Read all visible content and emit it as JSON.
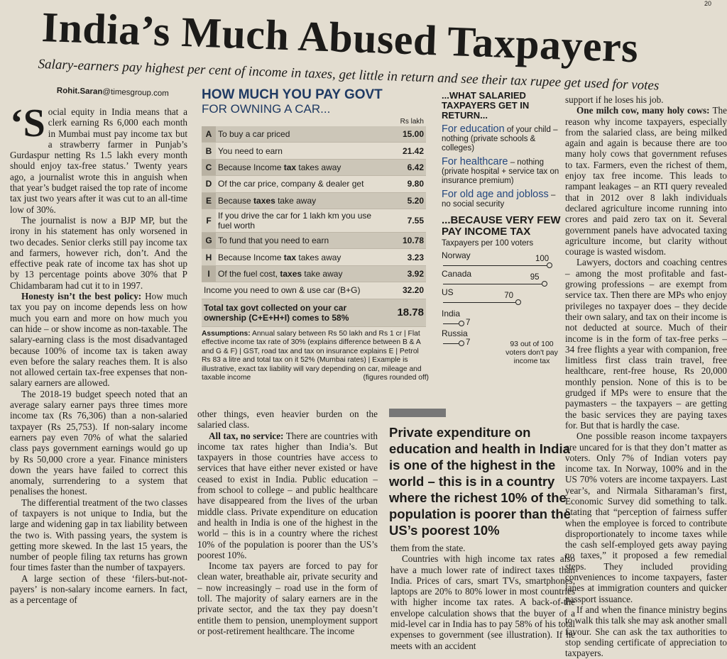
{
  "page": {
    "corner_number": "20",
    "headline": "India’s Much Abused Taxpayers",
    "subhead": "Salary-earners pay highest per cent of income in taxes, get little in return and see their tax rupee get used for votes",
    "byline_name": "Rohit.Saran",
    "byline_email": "@timesgroup.com"
  },
  "article": {
    "dropcap": "‘S",
    "col1": [
      "ocial equity in India means that a clerk earning Rs 6,000 each month in Mumbai must pay income tax but a strawberry farmer in Punjab’s Gurdaspur netting Rs 1.5 lakh every month should enjoy tax-free status.’ Twenty years ago, a journalist wrote this in anguish when that year’s budget raised the top rate of income tax just two years after it was cut to an all-time low of 30%.",
      "The journalist is now a BJP MP, but the irony in his statement has only worsened in two decades. Senior clerks still pay income tax and farmers, however rich, don’t. And the effective peak rate of income tax has shot up by 13 percentage points above 30% that P Chidambaram had cut it to in 1997.",
      "The 2018-19 budget speech noted that an average salary earner pays three times more income tax (Rs 76,306) than a non-salaried taxpayer (Rs 25,753). If non-salary income earners pay even 70% of what the salaried class pays government earnings would go up by Rs 50,000 crore a year. Finance ministers down the years have failed to correct this anomaly, surrendering to a system that penalises the honest.",
      "The differential treatment of the two classes of taxpayers is not unique to India, but the large and widening gap in tax liability between the two is. With passing years, the system is getting more skewed. In the last 15 years, the number of people filing tax returns has grown four times faster than the number of taxpayers.",
      "A large section of these ‘filers-but-not-payers’ is non-salary income earners. In fact, as a percentage of"
    ],
    "honesty_lead": "Honesty isn’t the best policy:",
    "honesty_text": "How much tax you pay on income depends less on how much you earn and more on how much you can hide – or show income as non-taxable. The salary-earning class is the most disadvantaged because 100% of income tax is taken away even before the salary reaches them. It is also not allowed certain tax-free expenses that non-salary earners are allowed.",
    "col2_start": "other things, even heavier burden on the salaried class.",
    "service_lead": "All tax, no service:",
    "service_text": "There are countries with income tax rates higher than India’s. But taxpayers in those countries have access to services that have either never existed or have ceased to exist in India. Public education – from school to college – and public healthcare have disappeared from the lives of the urban middle class. Private expenditure on education and health in India is one of the highest in the world – this is in a country where the richest 10% of the population is poorer than the US’s poorest 10%.",
    "col2_end": "Income tax payers are forced to pay for clean water, breathable air, private security and – now increasingly – road use in the form of toll. The majority of salary earners are in the private sector, and the tax they pay doesn’t entitle them to pension, unemployment support or post-retirement healthcare. The income",
    "col3_a": "them from the state.",
    "col3_b": "Countries with high income tax rates also have a much lower rate of indirect taxes than India. Prices of cars, smart TVs, smartphones, laptops are 20% to 80% lower in most countries with higher income tax rates. A back-of-the envelope calculation shows that the buyer of a mid-level car in India has to pay 58% of his total expenses to government (see illustration). If he meets with an accident",
    "col4_start": "support if he loses his job.",
    "milch_lead": "One milch cow, many holy cows:",
    "milch_text": "The reason why income taxpayers, especially from the salaried class, are being milked again and again is because there are too many holy cows that government refuses to tax. Farmers, even the richest of them, enjoy tax free income. This leads to rampant leakages – an RTI query revealed that in 2012 over 8 lakh individuals declared agriculture income running into crores and paid zero tax on it. Several government panels have advocated taxing agriculture income, but clarity without courage is wasted wisdom.",
    "col4_p2": "Lawyers, doctors and coaching centres – among the most profitable and fast-growing professions – are exempt from service tax. Then there are MPs who enjoy privileges no taxpayer does – they decide their own salary, and tax on their income is not deducted at source. Much of their income is in the form of tax-free perks – 34 free flights a year with companion, free limitless first class train travel, free healthcare, rent-free house, Rs 20,000 monthly pension. None of this is to be grudged if MPs were to ensure that the paymasters – the taxpayers – are getting the basic services they are paying taxes for. But that is hardly the case.",
    "col4_p3": "One possible reason income taxpayers are uncared for is that they don’t matter as voters. Only 7% of Indian voters pay income tax. In Norway, 100% and in the US 70% voters are income taxpayers. Last year’s, and Nirmala Sitharaman’s first, Economic Survey did something to talk. Stating that “perception of fairness suffer when the employee is forced to contribute disproportionately to income taxes while the cash self-employed gets away paying no taxes,” it proposed a few remedial steps. They included providing conveniences to income taxpayers, faster lanes at immigration counters and quicker passport issuance.",
    "col4_p4": "If and when the finance ministry begins to walk this talk she may ask another small favour. She can ask the tax authorities to stop sending certificate of appreciation to taxpayers."
  },
  "car_box": {
    "title": "HOW MUCH YOU PAY GOVT",
    "subtitle": "FOR OWNING A CAR...",
    "unit": "Rs lakh",
    "rows": [
      {
        "letter": "A",
        "label": "To buy a car priced",
        "value": "15.00",
        "shaded": true
      },
      {
        "letter": "B",
        "label": "You need to earn",
        "value": "21.42",
        "shaded": false
      },
      {
        "letter": "C",
        "label_pre": "Because Income ",
        "label_bold": "tax",
        "label_post": " takes away",
        "value": "6.42",
        "shaded": true
      },
      {
        "letter": "D",
        "label": "Of the car price, company & dealer get",
        "value": "9.80",
        "shaded": false
      },
      {
        "letter": "E",
        "label_pre": "Because ",
        "label_bold": "taxes",
        "label_post": " take away",
        "value": "5.20",
        "shaded": true
      },
      {
        "letter": "F",
        "label": "If you drive the car for 1 lakh km you use fuel worth",
        "value": "7.55",
        "shaded": false
      },
      {
        "letter": "G",
        "label": "To fund that you need to earn",
        "value": "10.78",
        "shaded": true
      },
      {
        "letter": "H",
        "label_pre": "Because Income ",
        "label_bold": "tax",
        "label_post": " takes away",
        "value": "3.23",
        "shaded": false
      },
      {
        "letter": "I",
        "label_pre": "Of the fuel cost, ",
        "label_bold": "taxes",
        "label_post": " take away",
        "value": "3.92",
        "shaded": true
      }
    ],
    "income_label": "Income you need to own & use car (B+G)",
    "income_value": "32.20",
    "total_label": "Total tax govt collected on your car ownership (C+E+H+I) comes to 58%",
    "total_value": "18.78",
    "assumptions_lead": "Assumptions:",
    "assumptions": "Annual salary between Rs 50 lakh and Rs 1 cr | Flat effective income tax rate of 30% (explains difference between B & A and G & F) | GST, road tax and tax on insurance explains E | Petrol Rs 83 a litre and total tax on it 52% (Mumbai rates) | Example is illustrative, exact tax liability will vary depending on car, mileage and taxable income",
    "rounded": "(figures rounded off)"
  },
  "salaried_box": {
    "heading": "...WHAT SALARIED TAXPAYERS GET IN RETURN...",
    "items": [
      {
        "blue": "For education",
        "rest": " of your child – nothing (private schools & colleges)"
      },
      {
        "blue": "For healthcare",
        "rest": " – nothing (private hospital + service tax on insurance premium)"
      },
      {
        "blue": "For old age and jobloss",
        "rest": " – no social security"
      }
    ],
    "heading2": "...BECAUSE VERY FEW PAY INCOME TAX",
    "chart_title": "Taxpayers per 100 voters",
    "note": "93 out of 100 voters don't pay income tax"
  },
  "chart_data": {
    "type": "bar",
    "title": "Taxpayers per 100 voters",
    "categories": [
      "Norway",
      "Canada",
      "US",
      "India",
      "Russia"
    ],
    "values": [
      100,
      95,
      70,
      7,
      7
    ],
    "labels": [
      "100",
      "95",
      "70",
      "7",
      "7"
    ],
    "xlim": [
      0,
      100
    ]
  },
  "quote": "Private expenditure on education and health in India is one of the highest in the world – this is in a country where the richest 10% of the population is poorer than the US’s poorest 10%"
}
